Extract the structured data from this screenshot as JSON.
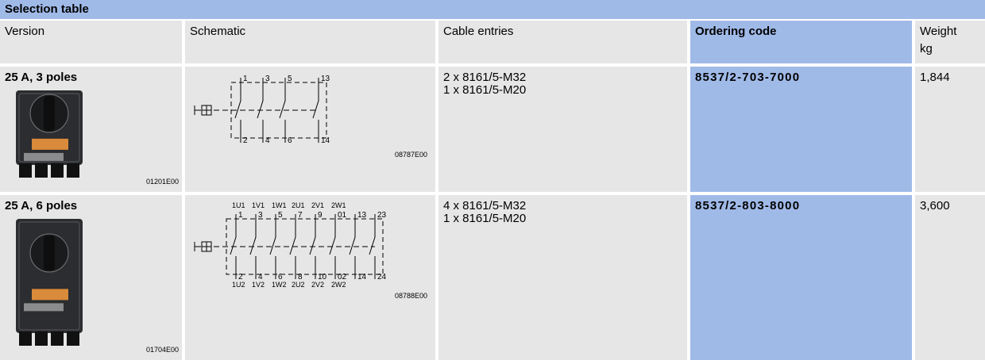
{
  "title": "Selection table",
  "headers": [
    "Version",
    "Schematic",
    "Cable entries",
    "Ordering code",
    "Weight"
  ],
  "weight_unit": "kg",
  "rows": [
    {
      "version": "25 A, 3 poles",
      "image_code": "01201E00",
      "schematic": {
        "code": "08787E00",
        "top_labels": [
          "1",
          "3",
          "5",
          "13"
        ],
        "bottom_labels": [
          "2",
          "4",
          "6",
          "14"
        ]
      },
      "cable_entries": [
        "2 x 8161/5-M32",
        "1 x 8161/5-M20"
      ],
      "ordering_code": "8537/2-703-7000",
      "weight": "1,844"
    },
    {
      "version": "25 A, 6 poles",
      "image_code": "01704E00",
      "schematic": {
        "code": "08788E00",
        "top_names": [
          "1U1",
          "1V1",
          "1W1",
          "2U1",
          "2V1",
          "2W1"
        ],
        "top_labels": [
          "1",
          "3",
          "5",
          "7",
          "9",
          "01",
          "13",
          "23"
        ],
        "bottom_labels": [
          "2",
          "4",
          "6",
          "8",
          "10",
          "02",
          "14",
          "24"
        ],
        "bottom_names": [
          "1U2",
          "1V2",
          "1W2",
          "2U2",
          "2V2",
          "2W2"
        ]
      },
      "cable_entries": [
        "4 x 8161/5-M32",
        "1 x 8161/5-M20"
      ],
      "ordering_code": "8537/2-803-8000",
      "weight": "3,600"
    }
  ]
}
